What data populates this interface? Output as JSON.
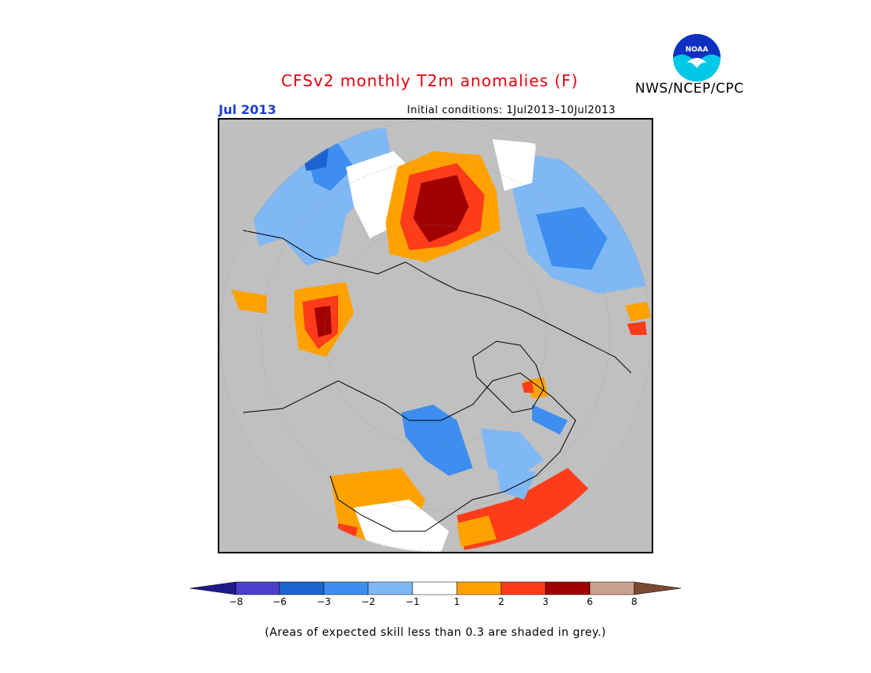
{
  "header": {
    "title": "CFSv2 monthly T2m anomalies (F)",
    "month": "Jul 2013",
    "initial_conditions": "Initial conditions: 1Jul2013–10Jul2013",
    "agency": "NWS/NCEP/CPC",
    "logo_text": "NOAA"
  },
  "colors": {
    "skill_grey": "#bfbfbf",
    "title_red": "#e8000b",
    "month_blue": "#1a3fd6",
    "bins": [
      "#1e1a8c",
      "#4b3fcc",
      "#1c63d0",
      "#3d8ef0",
      "#7fb8f5",
      "#ffffff",
      "#ffa200",
      "#ff3c1a",
      "#a00000",
      "#c8a08c",
      "#7a4a33"
    ]
  },
  "colorbar": {
    "tick_labels": [
      "−8",
      "−6",
      "−3",
      "−2",
      "−1",
      "1",
      "2",
      "3",
      "6",
      "8"
    ]
  },
  "footnote": "(Areas of expected skill less than 0.3 are shaded in grey.)"
}
